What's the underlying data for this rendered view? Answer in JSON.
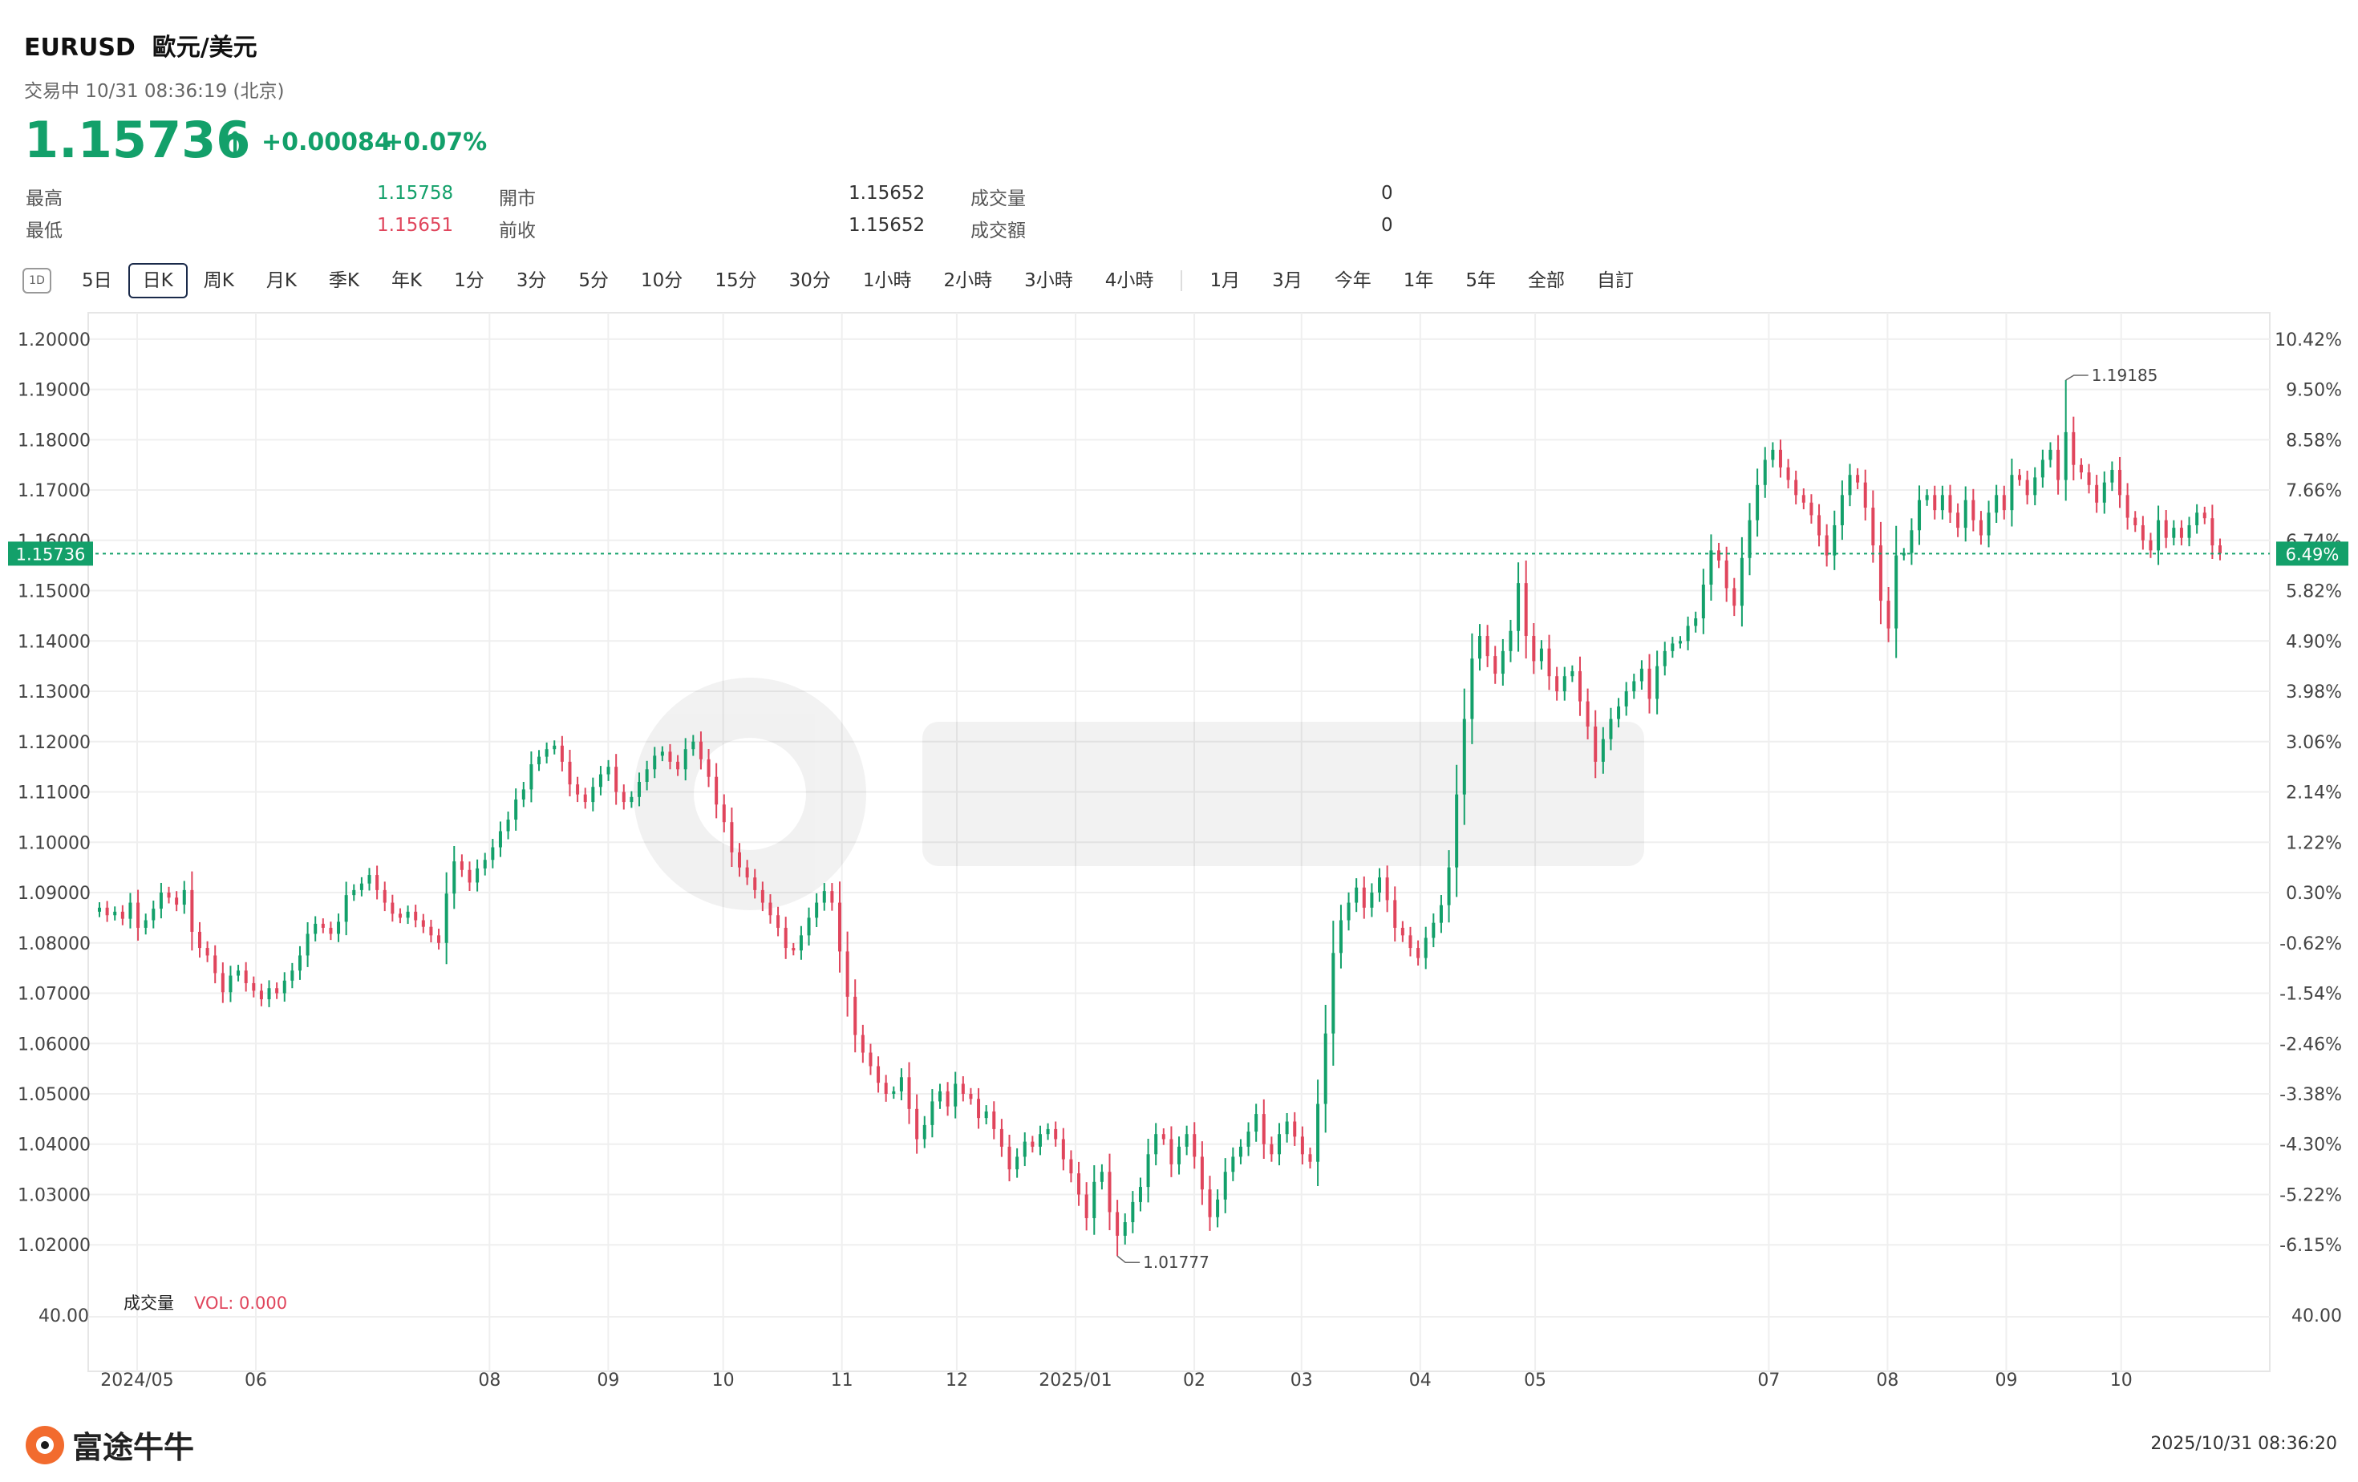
{
  "header": {
    "symbol": "EURUSD",
    "name": "歐元/美元",
    "status": "交易中 10/31 08:36:19 (北京)",
    "price": "1.15736",
    "change": "+0.00084",
    "change_pct": "+0.07%"
  },
  "stats": {
    "high_label": "最高",
    "high_value": "1.15758",
    "low_label": "最低",
    "low_value": "1.15651",
    "open_label": "開市",
    "open_value": "1.15652",
    "prev_label": "前收",
    "prev_value": "1.15652",
    "vol_label": "成交量",
    "vol_value": "0",
    "amt_label": "成交額",
    "amt_value": "0"
  },
  "toolbar": {
    "icon_label": "1D",
    "periods": [
      "5日",
      "日K",
      "周K",
      "月K",
      "季K",
      "年K",
      "1分",
      "3分",
      "5分",
      "10分",
      "15分",
      "30分",
      "1小時",
      "2小時",
      "3小時",
      "4小時"
    ],
    "ranges": [
      "1月",
      "3月",
      "今年",
      "1年",
      "5年",
      "全部",
      "自訂"
    ],
    "active": "日K"
  },
  "colors": {
    "up": "#13a06a",
    "down": "#e0455c",
    "grid": "#efefef",
    "axis": "#333333"
  },
  "chart_data": {
    "type": "candlestick",
    "y_ticks": [
      1.2,
      1.19,
      1.18,
      1.17,
      1.16,
      1.15,
      1.14,
      1.13,
      1.12,
      1.11,
      1.1,
      1.09,
      1.08,
      1.07,
      1.06,
      1.05,
      1.04,
      1.03,
      1.02
    ],
    "y_pct_ticks": [
      "10.42%",
      "9.50%",
      "8.58%",
      "7.66%",
      "6.74%",
      "5.82%",
      "4.90%",
      "3.98%",
      "3.06%",
      "2.14%",
      "1.22%",
      "0.30%",
      "-0.62%",
      "-1.54%",
      "-2.46%",
      "-3.38%",
      "-4.30%",
      "-5.22%",
      "-6.15%"
    ],
    "ylim": [
      1.0092,
      1.203
    ],
    "x_ticks": [
      {
        "label": "2024/05",
        "date": "2024-05-01"
      },
      {
        "label": "06",
        "date": "2024-06-01"
      },
      {
        "label": "08",
        "date": "2024-08-01"
      },
      {
        "label": "09",
        "date": "2024-09-01"
      },
      {
        "label": "10",
        "date": "2024-10-01"
      },
      {
        "label": "11",
        "date": "2024-11-01"
      },
      {
        "label": "12",
        "date": "2024-12-01"
      },
      {
        "label": "2025/01",
        "date": "2025-01-01"
      },
      {
        "label": "02",
        "date": "2025-02-01"
      },
      {
        "label": "03",
        "date": "2025-03-01"
      },
      {
        "label": "04",
        "date": "2025-04-01"
      },
      {
        "label": "05",
        "date": "2025-05-01"
      },
      {
        "label": "07",
        "date": "2025-07-01"
      },
      {
        "label": "08",
        "date": "2025-08-01"
      },
      {
        "label": "09",
        "date": "2025-09-01"
      },
      {
        "label": "10",
        "date": "2025-10-01"
      }
    ],
    "current_price": "1.15736",
    "current_pct": "6.49%",
    "max_label": "1.19185",
    "min_label": "1.01777",
    "volume_label": "成交量",
    "volume_value": "VOL: 0.000",
    "volume_axis": "40.00",
    "closes": [
      1.087,
      1.0855,
      1.0862,
      1.0848,
      1.088,
      1.083,
      1.0845,
      1.0868,
      1.09,
      1.089,
      1.0876,
      1.0905,
      1.0822,
      1.079,
      1.0775,
      1.074,
      1.0702,
      1.0735,
      1.0745,
      1.072,
      1.0705,
      1.0688,
      1.071,
      1.07,
      1.0725,
      1.0745,
      1.0775,
      1.0818,
      1.0838,
      1.083,
      1.0818,
      1.0842,
      1.0895,
      1.0905,
      1.0918,
      1.0935,
      1.0905,
      1.088,
      1.0858,
      1.085,
      1.0862,
      1.0845,
      1.0832,
      1.0815,
      1.08,
      1.0898,
      1.0962,
      1.0945,
      1.092,
      1.0948,
      1.0965,
      1.099,
      1.1022,
      1.1045,
      1.1085,
      1.1105,
      1.1155,
      1.117,
      1.1185,
      1.1192,
      1.116,
      1.1115,
      1.1095,
      1.108,
      1.111,
      1.1135,
      1.115,
      1.11,
      1.108,
      1.109,
      1.112,
      1.1145,
      1.1172,
      1.118,
      1.116,
      1.1145,
      1.1185,
      1.12,
      1.1165,
      1.113,
      1.1075,
      1.104,
      1.098,
      1.095,
      1.093,
      1.0905,
      1.088,
      1.0855,
      1.083,
      1.079,
      1.0785,
      1.0815,
      1.085,
      1.088,
      1.0903,
      1.088,
      1.0783,
      1.0693,
      1.0617,
      1.0582,
      1.0555,
      1.0522,
      1.05,
      1.0505,
      1.0533,
      1.047,
      1.041,
      1.0438,
      1.0485,
      1.0505,
      1.0475,
      1.052,
      1.05,
      1.049,
      1.0452,
      1.0465,
      1.043,
      1.0395,
      1.035,
      1.0375,
      1.0405,
      1.0395,
      1.042,
      1.043,
      1.041,
      1.037,
      1.0342,
      1.03,
      1.0253,
      1.0325,
      1.0345,
      1.0265,
      1.0218,
      1.0245,
      1.0285,
      1.0315,
      1.038,
      1.042,
      1.041,
      1.036,
      1.0395,
      1.042,
      1.0375,
      1.031,
      1.0255,
      1.029,
      1.0345,
      1.0375,
      1.0395,
      1.0425,
      1.046,
      1.04,
      1.038,
      1.042,
      1.0445,
      1.0415,
      1.038,
      1.0365,
      1.048,
      1.062,
      1.078,
      1.0845,
      1.088,
      1.091,
      1.087,
      1.09,
      1.093,
      1.0885,
      1.083,
      1.0815,
      1.079,
      1.077,
      1.081,
      1.084,
      1.0875,
      1.095,
      1.1095,
      1.1245,
      1.1365,
      1.141,
      1.137,
      1.1335,
      1.138,
      1.142,
      1.1515,
      1.141,
      1.136,
      1.1385,
      1.133,
      1.13,
      1.133,
      1.134,
      1.128,
      1.123,
      1.116,
      1.1205,
      1.1245,
      1.127,
      1.13,
      1.132,
      1.1345,
      1.1285,
      1.135,
      1.138,
      1.1395,
      1.14,
      1.143,
      1.1445,
      1.1512,
      1.158,
      1.156,
      1.1505,
      1.147,
      1.1565,
      1.164,
      1.171,
      1.176,
      1.178,
      1.1745,
      1.172,
      1.169,
      1.1675,
      1.165,
      1.161,
      1.157,
      1.163,
      1.169,
      1.173,
      1.1715,
      1.1665,
      1.159,
      1.148,
      1.1425,
      1.157,
      1.1575,
      1.162,
      1.168,
      1.169,
      1.166,
      1.169,
      1.1655,
      1.1625,
      1.168,
      1.164,
      1.161,
      1.1655,
      1.169,
      1.166,
      1.173,
      1.172,
      1.169,
      1.1725,
      1.176,
      1.178,
      1.172,
      1.1815,
      1.175,
      1.1735,
      1.171,
      1.1675,
      1.1715,
      1.174,
      1.169,
      1.1645,
      1.163,
      1.16,
      1.158,
      1.164,
      1.1605,
      1.1625,
      1.1605,
      1.163,
      1.1655,
      1.1644,
      1.159,
      1.1574
    ]
  }
}
